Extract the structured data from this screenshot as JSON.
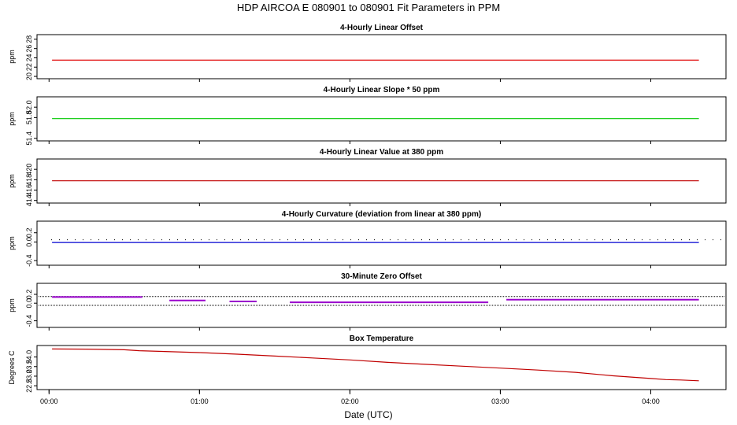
{
  "chart_data": {
    "title": "HDP   AIRCOA E   080901 to 080901   Fit Parameters in PPM",
    "xlabel": "Date (UTC)",
    "x_ticks": [
      "00:00",
      "01:00",
      "02:00",
      "03:00",
      "04:00"
    ],
    "xlim_hours": [
      -0.08,
      4.5
    ],
    "panels": [
      {
        "type": "line",
        "title": "4-Hourly Linear Offset",
        "ylabel": "ppm",
        "ylim": [
          19.5,
          29.0
        ],
        "yticks": [
          "20",
          "22",
          "24",
          "26",
          "28"
        ],
        "color": "#e00000",
        "series": [
          {
            "name": "offset",
            "x": [
              0.02,
              4.32
            ],
            "y": [
              23.5,
              23.5
            ]
          }
        ]
      },
      {
        "type": "line",
        "title": "4-Hourly Linear Slope * 50 ppm",
        "ylabel": "ppm",
        "ylim": [
          51.35,
          52.2
        ],
        "yticks": [
          "51.4",
          "51.8",
          "52.0"
        ],
        "color": "#00c800",
        "series": [
          {
            "name": "slope",
            "x": [
              0.02,
              4.32
            ],
            "y": [
              51.78,
              51.78
            ]
          }
        ]
      },
      {
        "type": "line",
        "title": "4-Hourly Linear Value at 380 ppm",
        "ylabel": "ppm",
        "ylim": [
          413.5,
          422.0
        ],
        "yticks": [
          "414",
          "416",
          "418",
          "420"
        ],
        "color": "#c00000",
        "series": [
          {
            "name": "value_380",
            "x": [
              0.02,
              4.32
            ],
            "y": [
              417.8,
              417.8
            ]
          }
        ]
      },
      {
        "type": "line",
        "title": "4-Hourly Curvature (deviation from linear at 380 ppm)",
        "ylabel": "ppm",
        "ylim": [
          -0.5,
          0.45
        ],
        "yticks": [
          "-0.4",
          "0.0",
          "0.2"
        ],
        "color": "#0000d0",
        "ref_dotted": 0.05,
        "series": [
          {
            "name": "curvature",
            "x": [
              0.02,
              4.32
            ],
            "y": [
              -0.01,
              -0.01
            ]
          }
        ]
      },
      {
        "type": "line",
        "title": "30-Minute Zero Offset",
        "ylabel": "ppm",
        "ylim": [
          -0.55,
          0.45
        ],
        "yticks": [
          "-0.4",
          "0.0",
          "0.2"
        ],
        "color": "#9900cc",
        "ref_dotted_lines": [
          0.15,
          -0.05
        ],
        "series": [
          {
            "name": "zero_offset",
            "segments": [
              {
                "x": [
                  0.02,
                  0.62
                ],
                "y": [
                  0.14,
                  0.14
                ]
              },
              {
                "x": [
                  0.8,
                  1.04
                ],
                "y": [
                  0.06,
                  0.06
                ]
              },
              {
                "x": [
                  1.2,
                  1.38
                ],
                "y": [
                  0.04,
                  0.04
                ]
              },
              {
                "x": [
                  1.6,
                  2.92
                ],
                "y": [
                  0.02,
                  0.02
                ]
              },
              {
                "x": [
                  3.04,
                  4.32
                ],
                "y": [
                  0.08,
                  0.08
                ]
              }
            ]
          }
        ]
      },
      {
        "type": "line",
        "title": "Box Temperature",
        "ylabel": "Degrees C",
        "ylim": [
          22.3,
          24.6
        ],
        "yticks": [
          "22.5",
          "23.0",
          "23.5",
          "24.0"
        ],
        "color": "#c00000",
        "series": [
          {
            "name": "box_temperature",
            "x": [
              0.02,
              0.25,
              0.5,
              0.6,
              0.75,
              1.0,
              1.25,
              1.5,
              1.75,
              2.0,
              2.25,
              2.5,
              2.75,
              3.0,
              3.25,
              3.5,
              3.75,
              4.0,
              4.1,
              4.2,
              4.32
            ],
            "y": [
              24.42,
              24.41,
              24.38,
              24.33,
              24.29,
              24.23,
              24.15,
              24.05,
              23.95,
              23.85,
              23.72,
              23.62,
              23.52,
              23.42,
              23.32,
              23.2,
              23.02,
              22.88,
              22.82,
              22.8,
              22.76
            ]
          }
        ]
      }
    ]
  }
}
